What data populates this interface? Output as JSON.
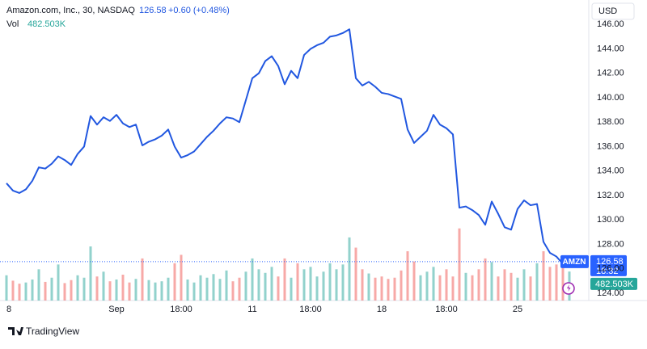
{
  "header": {
    "title": "Amazon.com, Inc., 30, NASDAQ",
    "price": "126.58",
    "change": "+0.60 (+0.48%)",
    "vol_label": "Vol",
    "vol_value": "482.503K",
    "currency": "USD",
    "brand": "TradingView"
  },
  "badges": {
    "symbol": "AMZN",
    "price": "126.58",
    "countdown": "18:32",
    "volume": "482.503K"
  },
  "chart_data": {
    "type": "line",
    "categories": [
      "8",
      null,
      null,
      null,
      null,
      null,
      null,
      null,
      null,
      null,
      null,
      null,
      null,
      null,
      null,
      null,
      null,
      "Sep",
      null,
      null,
      null,
      null,
      null,
      null,
      null,
      null,
      null,
      "18:00",
      null,
      null,
      null,
      null,
      null,
      null,
      null,
      null,
      null,
      null,
      "11",
      null,
      null,
      null,
      null,
      null,
      null,
      null,
      null,
      "18:00",
      null,
      null,
      null,
      null,
      null,
      null,
      null,
      null,
      null,
      null,
      "18",
      null,
      null,
      null,
      null,
      null,
      null,
      null,
      null,
      null,
      "18:00",
      null,
      null,
      null,
      null,
      null,
      null,
      null,
      null,
      null,
      null,
      "25",
      null,
      null,
      null,
      null,
      null,
      null,
      null,
      null
    ],
    "series": [
      {
        "name": "AMZN",
        "color": "#2157e0",
        "values": [
          133.0,
          132.4,
          132.2,
          132.5,
          133.2,
          134.3,
          134.2,
          134.6,
          135.2,
          134.9,
          134.5,
          135.4,
          136.0,
          138.5,
          137.8,
          138.4,
          138.1,
          138.6,
          137.9,
          137.6,
          137.8,
          136.1,
          136.4,
          136.6,
          136.9,
          137.4,
          136.0,
          135.1,
          135.3,
          135.6,
          136.2,
          136.8,
          137.3,
          137.9,
          138.4,
          138.3,
          138.0,
          139.8,
          141.6,
          142.0,
          143.0,
          143.4,
          142.6,
          141.1,
          142.2,
          141.6,
          143.5,
          144.0,
          144.3,
          144.5,
          145.0,
          145.1,
          145.3,
          145.6,
          141.6,
          141.0,
          141.3,
          140.9,
          140.4,
          140.3,
          140.1,
          139.9,
          137.4,
          136.3,
          136.8,
          137.3,
          138.6,
          137.8,
          137.5,
          137.0,
          131.0,
          131.1,
          130.8,
          130.4,
          129.6,
          131.5,
          130.5,
          129.4,
          129.2,
          130.9,
          131.6,
          131.2,
          131.3,
          128.2,
          127.3,
          127.0,
          126.4,
          126.58
        ]
      },
      {
        "name": "Vol",
        "type": "bar",
        "axis": "y2",
        "up_color": "#26a69a",
        "down_color": "#ef5350",
        "values": [
          420,
          330,
          280,
          300,
          350,
          520,
          310,
          380,
          600,
          290,
          340,
          420,
          380,
          900,
          400,
          480,
          320,
          350,
          430,
          300,
          360,
          700,
          340,
          300,
          320,
          380,
          620,
          760,
          350,
          300,
          420,
          380,
          440,
          360,
          500,
          320,
          380,
          480,
          700,
          520,
          460,
          560,
          400,
          700,
          380,
          620,
          520,
          560,
          400,
          480,
          620,
          520,
          600,
          1050,
          880,
          520,
          450,
          380,
          400,
          360,
          380,
          500,
          820,
          650,
          420,
          480,
          560,
          420,
          520,
          400,
          1200,
          460,
          420,
          520,
          700,
          640,
          400,
          520,
          460,
          380,
          520,
          400,
          620,
          820,
          560,
          600,
          700,
          482.503
        ]
      }
    ],
    "ylim": [
      123.4,
      148
    ],
    "y2lim": [
      0,
      5000
    ],
    "yticks": [
      {
        "value": 124,
        "label": "124.00"
      },
      {
        "value": 126,
        "label": "126.00"
      },
      {
        "value": 128,
        "label": "128.00"
      },
      {
        "value": 130,
        "label": "130.00"
      },
      {
        "value": 132,
        "label": "132.00"
      },
      {
        "value": 134,
        "label": "134.00"
      },
      {
        "value": 136,
        "label": "136.00"
      },
      {
        "value": 138,
        "label": "138.00"
      },
      {
        "value": 140,
        "label": "140.00"
      },
      {
        "value": 142,
        "label": "142.00"
      },
      {
        "value": 144,
        "label": "144.00"
      },
      {
        "value": 146,
        "label": "146.00"
      }
    ],
    "grid": false
  }
}
